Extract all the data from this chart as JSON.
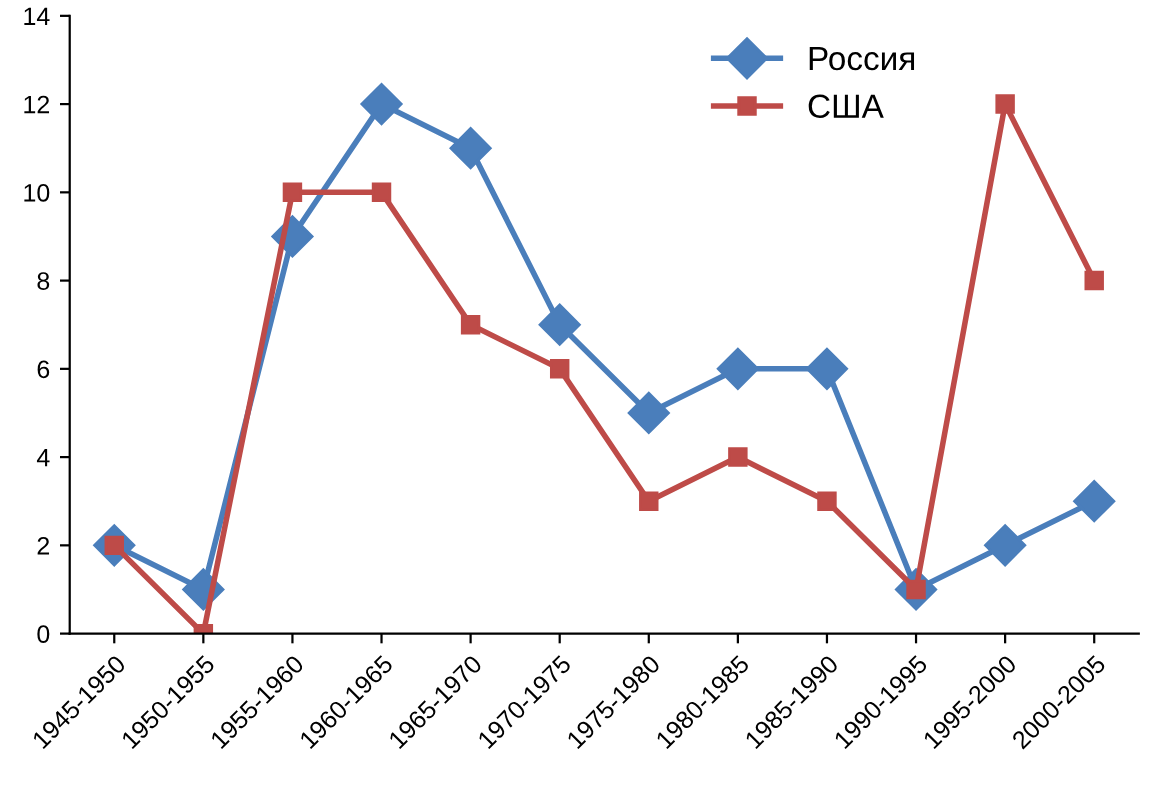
{
  "chart_data": {
    "type": "line",
    "categories": [
      "1945-1950",
      "1950-1955",
      "1955-1960",
      "1960-1965",
      "1965-1970",
      "1970-1975",
      "1975-1980",
      "1980-1985",
      "1985-1990",
      "1990-1995",
      "1995-2000",
      "2000-2005"
    ],
    "series": [
      {
        "name": "Россия",
        "color": "#4a7ebb",
        "marker": "diamond",
        "values": [
          2,
          1,
          9,
          12,
          11,
          7,
          5,
          6,
          6,
          1,
          2,
          3
        ]
      },
      {
        "name": "США",
        "color": "#be4b48",
        "marker": "square",
        "values": [
          2,
          0,
          10,
          10,
          7,
          6,
          3,
          4,
          3,
          1,
          12,
          8
        ]
      }
    ],
    "ylim": [
      0,
      14
    ],
    "yticks": [
      0,
      2,
      4,
      6,
      8,
      10,
      12,
      14
    ],
    "grid": false,
    "legend": "top right",
    "line_style": "solid"
  }
}
